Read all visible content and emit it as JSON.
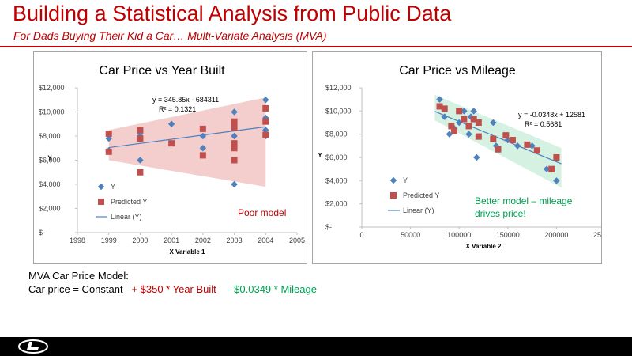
{
  "slide": {
    "title": "Building a Statistical Analysis from Public Data",
    "subtitle": "For Dads Buying Their Kid a Car… Multi-Variate Analysis (MVA)"
  },
  "model_text": {
    "line1": "MVA Car Price Model:",
    "line2_prefix": "Car price = Constant",
    "line2_year": "+ $350 * Year Built",
    "line2_mileage": "-  $0.0349 * Mileage"
  },
  "colors": {
    "accent": "#c00000",
    "series_y": "#4f81bd",
    "series_predicted": "#c0504d",
    "band_poor": "#f2c4c4",
    "band_good": "#cdeedd",
    "note_good": "#00a050"
  },
  "footer": {
    "logo_icon": "brand-logo-icon"
  },
  "chart_data": [
    {
      "type": "scatter",
      "title": "Car Price vs Year Built",
      "xlabel": "X Variable 1",
      "ylabel": "Y",
      "xlim": [
        1998,
        2005
      ],
      "ylim": [
        0,
        12000
      ],
      "x_ticks": [
        "1998",
        "1999",
        "2000",
        "2001",
        "2002",
        "2003",
        "2004",
        "2005"
      ],
      "y_ticks": [
        "$-",
        "$2,000",
        "$4,000",
        "$6,000",
        "$8,000",
        "$10,000",
        "$12,000"
      ],
      "grid": false,
      "legend_position": "left",
      "legend": [
        "Y",
        "Predicted Y",
        "Linear (Y)"
      ],
      "equation": "y = 345.85x - 684311",
      "r_squared": "R² = 0.1321",
      "note": "Poor model",
      "trendline": {
        "slope": 345.85,
        "intercept": -684311
      },
      "band": [
        [
          1999,
          6000,
          8500
        ],
        [
          2004,
          3800,
          11200
        ]
      ],
      "series": [
        {
          "name": "Y",
          "points": [
            [
              1999,
              6800
            ],
            [
              1999,
              7800
            ],
            [
              1999,
              8200
            ],
            [
              2000,
              6000
            ],
            [
              2000,
              8200
            ],
            [
              2001,
              9000
            ],
            [
              2002,
              7000
            ],
            [
              2002,
              8000
            ],
            [
              2003,
              4000
            ],
            [
              2003,
              8000
            ],
            [
              2003,
              9000
            ],
            [
              2003,
              10000
            ],
            [
              2004,
              8000
            ],
            [
              2004,
              8500
            ],
            [
              2004,
              9500
            ],
            [
              2004,
              11000
            ]
          ]
        },
        {
          "name": "Predicted Y",
          "points": [
            [
              1999,
              6700
            ],
            [
              1999,
              8200
            ],
            [
              2000,
              5000
            ],
            [
              2000,
              7800
            ],
            [
              2000,
              8500
            ],
            [
              2001,
              7400
            ],
            [
              2002,
              6400
            ],
            [
              2002,
              8600
            ],
            [
              2003,
              6000
            ],
            [
              2003,
              7000
            ],
            [
              2003,
              7400
            ],
            [
              2003,
              8700
            ],
            [
              2003,
              9200
            ],
            [
              2004,
              8100
            ],
            [
              2004,
              9200
            ],
            [
              2004,
              10300
            ]
          ]
        }
      ]
    },
    {
      "type": "scatter",
      "title": "Car Price vs Mileage",
      "xlabel": "X Variable 2",
      "ylabel": "Y",
      "xlim": [
        0,
        250000
      ],
      "ylim": [
        0,
        12000
      ],
      "x_ticks": [
        "0",
        "50000",
        "100000",
        "150000",
        "200000",
        "250000"
      ],
      "y_ticks": [
        "$-",
        "$2,000",
        "$4,000",
        "$6,000",
        "$8,000",
        "$10,000",
        "$12,000"
      ],
      "grid": false,
      "legend_position": "left",
      "legend": [
        "Y",
        "Predicted Y",
        "Linear (Y)"
      ],
      "equation": "y = -0.0348x + 12581",
      "r_squared": "R² = 0.5681",
      "note": "Better model – mileage drives price!",
      "trendline": {
        "slope": -0.0348,
        "intercept": 12581
      },
      "band": [
        [
          75000,
          9200,
          11400
        ],
        [
          205000,
          3400,
          6800
        ]
      ],
      "series": [
        {
          "name": "Y",
          "points": [
            [
              80000,
              11000
            ],
            [
              85000,
              9500
            ],
            [
              90000,
              8000
            ],
            [
              95000,
              8500
            ],
            [
              100000,
              9000
            ],
            [
              105000,
              10000
            ],
            [
              110000,
              8000
            ],
            [
              112000,
              9500
            ],
            [
              115000,
              10000
            ],
            [
              118000,
              6000
            ],
            [
              120000,
              7800
            ],
            [
              135000,
              9000
            ],
            [
              138000,
              7000
            ],
            [
              140000,
              6800
            ],
            [
              150000,
              7500
            ],
            [
              160000,
              7000
            ],
            [
              175000,
              7000
            ],
            [
              190000,
              5000
            ],
            [
              200000,
              4000
            ],
            [
              200000,
              6000
            ]
          ]
        },
        {
          "name": "Predicted Y",
          "points": [
            [
              80000,
              10400
            ],
            [
              85000,
              10200
            ],
            [
              92000,
              8700
            ],
            [
              95000,
              8300
            ],
            [
              100000,
              10000
            ],
            [
              105000,
              9300
            ],
            [
              110000,
              8700
            ],
            [
              115000,
              9300
            ],
            [
              120000,
              9000
            ],
            [
              120000,
              7800
            ],
            [
              135000,
              7600
            ],
            [
              140000,
              6700
            ],
            [
              148000,
              7900
            ],
            [
              155000,
              7500
            ],
            [
              170000,
              7100
            ],
            [
              180000,
              6600
            ],
            [
              195000,
              5000
            ],
            [
              200000,
              6000
            ]
          ]
        }
      ]
    }
  ]
}
